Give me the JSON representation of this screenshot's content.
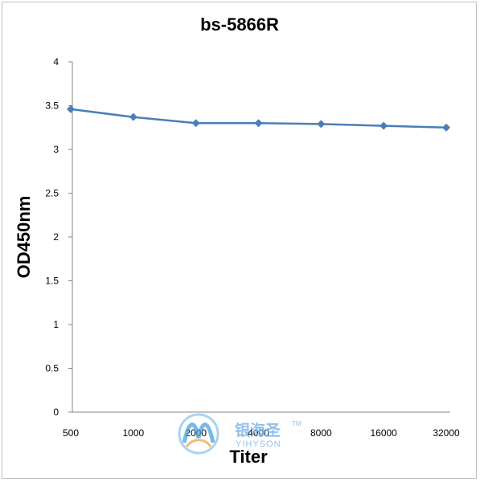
{
  "chart_data": {
    "type": "line",
    "title": "bs-5866R",
    "xlabel": "Titer",
    "ylabel": "OD450nm",
    "categories": [
      "500",
      "1000",
      "2000",
      "4000",
      "8000",
      "16000",
      "32000"
    ],
    "series": [
      {
        "values": [
          3.46,
          3.37,
          3.3,
          3.3,
          3.29,
          3.27,
          3.25
        ]
      }
    ],
    "ylim": [
      0,
      4
    ],
    "yticks": [
      "0",
      "0.5",
      "1",
      "1.5",
      "2",
      "2.5",
      "3",
      "3.5",
      "4"
    ],
    "grid": false,
    "legend": "none",
    "series_color": "#4a7ebb"
  },
  "watermark": {
    "cn": "银海圣",
    "en": "YIHYSON",
    "tm": "TM"
  }
}
